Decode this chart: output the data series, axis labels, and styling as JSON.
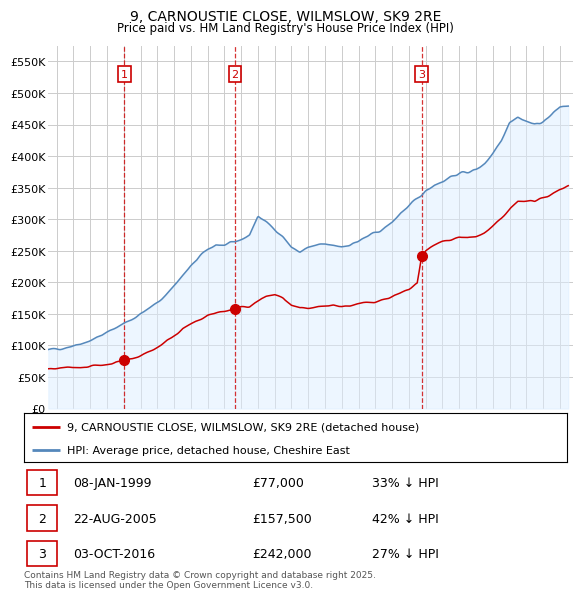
{
  "title": "9, CARNOUSTIE CLOSE, WILMSLOW, SK9 2RE",
  "subtitle": "Price paid vs. HM Land Registry's House Price Index (HPI)",
  "hpi_label": "HPI: Average price, detached house, Cheshire East",
  "property_label": "9, CARNOUSTIE CLOSE, WILMSLOW, SK9 2RE (detached house)",
  "sale_dates": [
    "08-JAN-1999",
    "22-AUG-2005",
    "03-OCT-2016"
  ],
  "sale_prices": [
    77000,
    157500,
    242000
  ],
  "sale_pct": [
    "33% ↓ HPI",
    "42% ↓ HPI",
    "27% ↓ HPI"
  ],
  "sale_years": [
    1999.03,
    2005.64,
    2016.76
  ],
  "copyright_text": "Contains HM Land Registry data © Crown copyright and database right 2025.\nThis data is licensed under the Open Government Licence v3.0.",
  "bg_color": "#ffffff",
  "hpi_color": "#5588bb",
  "hpi_fill_color": "#ddeeff",
  "property_color": "#cc0000",
  "vline_color": "#cc0000",
  "grid_color": "#cccccc",
  "ylim": [
    0,
    575000
  ],
  "yticks": [
    0,
    50000,
    100000,
    150000,
    200000,
    250000,
    300000,
    350000,
    400000,
    450000,
    500000,
    550000
  ],
  "xlim_start": 1994.5,
  "xlim_end": 2025.8
}
